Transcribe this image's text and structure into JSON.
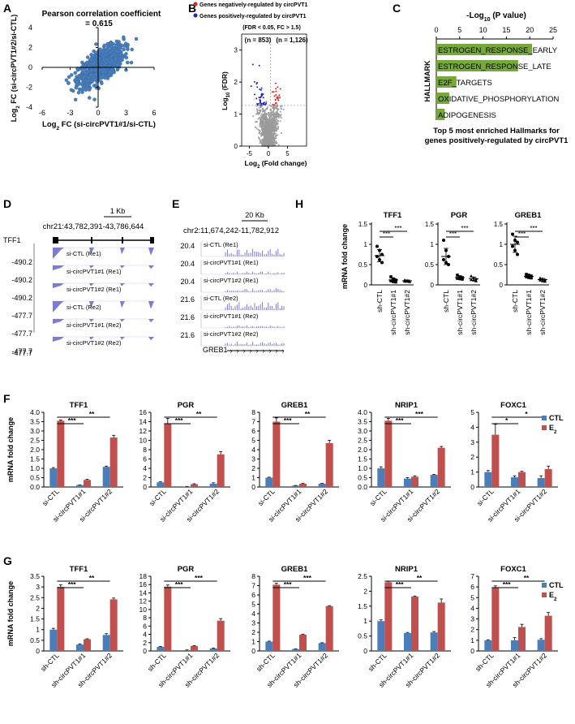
{
  "colors": {
    "ctl": "#4a7ebb",
    "e2": "#c0504d",
    "scatter": "#4a7ebb",
    "neg": "#2020d0",
    "pos": "#e02020",
    "gray": "#9a9a9a",
    "hall": "#77a83a",
    "track": "#7b7bdc"
  },
  "chart_data": [
    {
      "id": "A",
      "type": "scatter",
      "panel": "A",
      "title": "Pearson correlation coefficient",
      "subtitle": "= 0.615",
      "xlabel_pre": "Log",
      "xlabel_sub": "2",
      "xlabel_post": " FC (si-circPVT1#1/si-CTL)",
      "ylabel_pre": "Log",
      "ylabel_sub": "2",
      "ylabel_post": " FC (si-circPVT1#2/si-CTL)",
      "xlim": [
        -6,
        6
      ],
      "ylim": [
        -4,
        4
      ],
      "xticks": [
        "-6",
        "-3",
        "0",
        "3",
        "6"
      ],
      "yticks": [
        "-4",
        "-2",
        "0",
        "2",
        "4"
      ],
      "r": 0.615
    },
    {
      "id": "B",
      "type": "scatter",
      "panel": "B",
      "legend_neg": "Genes negatively-regulated by circPVT1",
      "legend_pos": "Genes positively-regulated by circPVT1",
      "criteria": "(FDR < 0.05, FC > 1.5)",
      "n_neg": "(n = 853)",
      "n_pos": "(n = 1,126)",
      "xlabel_pre": "Log",
      "xlabel_sub": "2",
      "xlabel_post": " (Fold change)",
      "ylabel_pre": "Log",
      "ylabel_sub": "10",
      "ylabel_post": " (FDR)",
      "xlim": [
        -7,
        10
      ],
      "ylim": [
        0,
        3.5
      ],
      "xticks": [
        "-5",
        "0",
        "5"
      ],
      "yticks": [
        "0",
        "1",
        "2",
        "3"
      ]
    },
    {
      "id": "C",
      "type": "bar",
      "panel": "C",
      "title_pre": "-Log",
      "title_sub": "10",
      "title_post": " (P value)",
      "ylabel": "HALLMARK",
      "xlim": [
        0,
        25
      ],
      "xticks": [
        "0",
        "5",
        "10",
        "15",
        "20",
        "25"
      ],
      "categories": [
        "ESTROGEN_RESPONSE_EARLY",
        "ESTROGEN_RESPONSE_LATE",
        "E2F_TARGETS",
        "OXIDATIVE_PHOSPHORYLATION",
        "ADIPOGENESIS"
      ],
      "values": [
        20.5,
        17.5,
        4.3,
        2.8,
        1.8
      ],
      "caption1": "Top 5 most enriched Hallmarks for",
      "caption2": "genes positively-regulated by circPVT1"
    },
    {
      "id": "D",
      "type": "track",
      "panel": "D",
      "scale": "1 Kb",
      "coords": "chr21:43,782,391-43,786,644",
      "gene": "TFF1",
      "scales": [
        "-490.2",
        "-490.2",
        "-490.2",
        "-477.7",
        "-477.7",
        "-477.7"
      ],
      "tracks": [
        "si-CTL (Re1)",
        "si-circPVT1#1 (Re1)",
        "si-circPVT1#2 (Re1)",
        "si-CTL (Re2)",
        "si-circPVT1#1 (Re2)",
        "si-circPVT1#2 (Re2)"
      ]
    },
    {
      "id": "E",
      "type": "track",
      "panel": "E",
      "scale": "20 Kb",
      "coords": "chr2:11,674,242-11,782,912",
      "gene": "GREB1",
      "scales": [
        "20.4",
        "20.4",
        "20.4",
        "21.6",
        "21.6",
        "21.6"
      ],
      "tracks": [
        "si-CTL (Re1)",
        "si-circPVT1#1 (Re1)",
        "si-circPVT1#2 (Re1)",
        "si-CTL (Re2)",
        "si-circPVT1#1 (Re2)",
        "si-circPVT1#2 (Re2)"
      ]
    },
    {
      "id": "H",
      "type": "dotplot",
      "panel": "H",
      "ylabel": "mRNA fold change",
      "categories": [
        "sh-CTL",
        "sh-circPVT1#1",
        "sh-circPVT1#2"
      ],
      "ylim": [
        0,
        1.5
      ],
      "yticks": [
        "0",
        "0.5",
        "1",
        "1.5"
      ],
      "sig": [
        "***",
        "***"
      ],
      "genes": [
        {
          "gene": "TFF1",
          "means": [
            0.72,
            0.12,
            0.1
          ],
          "sd": [
            0.15,
            0.04,
            0.02
          ],
          "points": [
            [
              0.95,
              0.85,
              0.75,
              0.7,
              0.62,
              0.55
            ],
            [
              0.2,
              0.15,
              0.12,
              0.1,
              0.08,
              0.07
            ],
            [
              0.12,
              0.11,
              0.1,
              0.09,
              0.09,
              0.08
            ]
          ]
        },
        {
          "gene": "PGR",
          "means": [
            0.7,
            0.18,
            0.15
          ],
          "sd": [
            0.2,
            0.04,
            0.04
          ],
          "points": [
            [
              1.1,
              0.85,
              0.7,
              0.62,
              0.55,
              0.5
            ],
            [
              0.24,
              0.2,
              0.18,
              0.16,
              0.15,
              0.14
            ],
            [
              0.22,
              0.18,
              0.15,
              0.13,
              0.12,
              0.1
            ]
          ]
        },
        {
          "gene": "GREB1",
          "means": [
            1.0,
            0.21,
            0.13
          ],
          "sd": [
            0.2,
            0.03,
            0.03
          ],
          "points": [
            [
              1.25,
              1.1,
              1.05,
              0.95,
              0.85,
              0.75
            ],
            [
              0.26,
              0.24,
              0.22,
              0.2,
              0.18,
              0.17
            ],
            [
              0.17,
              0.15,
              0.13,
              0.12,
              0.1,
              0.09
            ]
          ]
        }
      ]
    },
    {
      "id": "F",
      "type": "bar",
      "panel": "F",
      "ylabel": "mRNA fold change",
      "categories": [
        "si-CTL",
        "si-circPVT1#1",
        "si-circPVT1#2"
      ],
      "legend": [
        "CTL",
        "E2"
      ],
      "genes": [
        {
          "gene": "TFF1",
          "ylim": [
            0,
            4
          ],
          "yticks": [
            "0.0",
            "0.5",
            "1.0",
            "1.5",
            "2.0",
            "2.5",
            "3.0",
            "3.5",
            "4.0"
          ],
          "ctl": [
            1.0,
            0.1,
            1.08
          ],
          "e2": [
            3.55,
            0.38,
            2.65
          ],
          "ctl_err": [
            0.04,
            0.01,
            0.04
          ],
          "e2_err": [
            0.04,
            0.03,
            0.12
          ],
          "sig": [
            "***",
            "**"
          ]
        },
        {
          "gene": "PGR",
          "ylim": [
            0,
            16
          ],
          "yticks": [
            "0",
            "2",
            "4",
            "6",
            "8",
            "10",
            "12",
            "14",
            "16"
          ],
          "ctl": [
            1.0,
            0.1,
            0.7
          ],
          "e2": [
            13.5,
            0.6,
            7.0
          ],
          "ctl_err": [
            0.1,
            0.02,
            0.2
          ],
          "e2_err": [
            1.2,
            0.1,
            0.6
          ],
          "sig": [
            "***",
            "**"
          ]
        },
        {
          "gene": "GREB1",
          "ylim": [
            0,
            8
          ],
          "yticks": [
            "0",
            "1",
            "2",
            "3",
            "4",
            "5",
            "6",
            "7",
            "8"
          ],
          "ctl": [
            1.0,
            0.15,
            0.35
          ],
          "e2": [
            7.0,
            0.35,
            4.7
          ],
          "ctl_err": [
            0.05,
            0.02,
            0.03
          ],
          "e2_err": [
            0.4,
            0.03,
            0.3
          ],
          "sig": [
            "***",
            "**"
          ]
        },
        {
          "gene": "NRIP1",
          "ylim": [
            0,
            4
          ],
          "yticks": [
            "0.0",
            "0.5",
            "1.0",
            "1.5",
            "2.0",
            "2.5",
            "3.0",
            "3.5",
            "4.0"
          ],
          "ctl": [
            1.0,
            0.45,
            0.65
          ],
          "e2": [
            3.55,
            0.55,
            2.1
          ],
          "ctl_err": [
            0.08,
            0.05,
            0.03
          ],
          "e2_err": [
            0.12,
            0.05,
            0.07
          ],
          "sig": [
            "***",
            "***"
          ]
        },
        {
          "gene": "FOXC1",
          "ylim": [
            0,
            5
          ],
          "yticks": [
            "0",
            "1",
            "2",
            "3",
            "4",
            "5"
          ],
          "ctl": [
            1.0,
            0.65,
            0.6
          ],
          "e2": [
            3.5,
            1.0,
            1.2
          ],
          "ctl_err": [
            0.1,
            0.1,
            0.15
          ],
          "e2_err": [
            0.7,
            0.05,
            0.2
          ],
          "sig": [
            "*",
            "*"
          ]
        }
      ]
    },
    {
      "id": "G",
      "type": "bar",
      "panel": "G",
      "ylabel": "mRNA fold change",
      "categories": [
        "sh-CTL",
        "sh-circPVT1#1",
        "sh-circPVT1#2"
      ],
      "legend": [
        "CTL",
        "E2"
      ],
      "genes": [
        {
          "gene": "TFF1",
          "ylim": [
            0,
            3.5
          ],
          "yticks": [
            "0",
            "0.5",
            "1",
            "1.5",
            "2",
            "2.5",
            "3",
            "3.5"
          ],
          "ctl": [
            1.0,
            0.3,
            0.75
          ],
          "e2": [
            3.0,
            0.55,
            2.42
          ],
          "ctl_err": [
            0.06,
            0.02,
            0.06
          ],
          "e2_err": [
            0.1,
            0.02,
            0.06
          ],
          "sig": [
            "***",
            "**"
          ]
        },
        {
          "gene": "PGR",
          "ylim": [
            0,
            18
          ],
          "yticks": [
            "0",
            "2",
            "4",
            "6",
            "8",
            "10",
            "12",
            "14",
            "16",
            "18"
          ],
          "ctl": [
            1.0,
            0.2,
            0.6
          ],
          "e2": [
            15.5,
            1.2,
            7.3
          ],
          "ctl_err": [
            0.1,
            0.05,
            0.1
          ],
          "e2_err": [
            0.4,
            0.1,
            0.5
          ],
          "sig": [
            "***",
            "***"
          ]
        },
        {
          "gene": "GREB1",
          "ylim": [
            0,
            8
          ],
          "yticks": [
            "0",
            "1",
            "2",
            "3",
            "4",
            "5",
            "6",
            "7",
            "8"
          ],
          "ctl": [
            1.0,
            0.2,
            0.85
          ],
          "e2": [
            7.1,
            1.75,
            4.8
          ],
          "ctl_err": [
            0.05,
            0.02,
            0.03
          ],
          "e2_err": [
            0.15,
            0.05,
            0.05
          ],
          "sig": [
            "***",
            "***"
          ]
        },
        {
          "gene": "NRIP1",
          "ylim": [
            0,
            2.5
          ],
          "yticks": [
            "0",
            "0.5",
            "1",
            "1.5",
            "2",
            "2.5"
          ],
          "ctl": [
            1.0,
            0.6,
            0.62
          ],
          "e2": [
            2.3,
            1.82,
            1.62
          ],
          "ctl_err": [
            0.04,
            0.02,
            0.03
          ],
          "e2_err": [
            0.03,
            0.02,
            0.12
          ],
          "sig": [
            "***",
            "**"
          ]
        },
        {
          "gene": "FOXC1",
          "ylim": [
            0,
            7
          ],
          "yticks": [
            "0",
            "1",
            "2",
            "3",
            "4",
            "5",
            "6",
            "7"
          ],
          "ctl": [
            1.0,
            1.0,
            1.05
          ],
          "e2": [
            5.9,
            2.25,
            3.3
          ],
          "ctl_err": [
            0.05,
            0.25,
            0.1
          ],
          "e2_err": [
            0.2,
            0.25,
            0.3
          ],
          "sig": [
            "***",
            "**"
          ]
        }
      ]
    }
  ]
}
